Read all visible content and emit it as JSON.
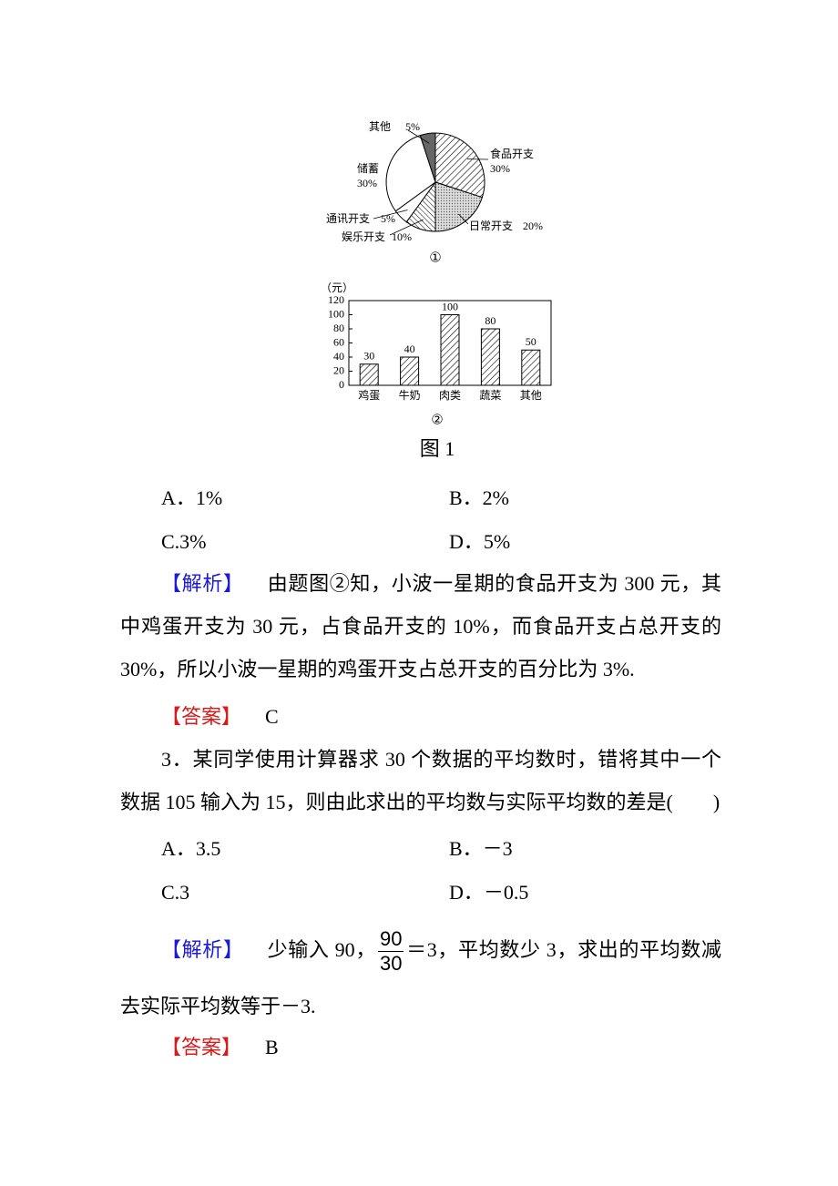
{
  "chart_data": [
    {
      "type": "pie",
      "categories": [
        "食品开支",
        "日常开支",
        "娱乐开支",
        "通讯开支",
        "储蓄",
        "其他"
      ],
      "values": [
        30,
        20,
        10,
        5,
        30,
        5
      ],
      "value_labels": [
        "30%",
        "20%",
        "10%",
        "5%",
        "30%",
        "5%"
      ],
      "label": "①"
    },
    {
      "type": "bar",
      "categories": [
        "鸡蛋",
        "牛奶",
        "肉类",
        "蔬菜",
        "其他"
      ],
      "values": [
        30,
        40,
        100,
        80,
        50
      ],
      "ylim": [
        0,
        120
      ],
      "yticks": [
        0,
        20,
        40,
        60,
        80,
        100,
        120
      ],
      "y_unit": "（元）",
      "label": "②"
    }
  ],
  "caption": "图 1",
  "question2_options": [
    "A．1%",
    "B．2%",
    "C.3%",
    "D．5%"
  ],
  "analysis1": {
    "tag": "【解析】",
    "text": "由题图②知，小波一星期的食品开支为 300 元，其中鸡蛋开支为 30 元，占食品开支的 10%，而食品开支占总开支的 30%，所以小波一星期的鸡蛋开支占总开支的百分比为 3%."
  },
  "answer1": {
    "tag": "【答案】",
    "text": "C"
  },
  "question3": {
    "stem": "3．某同学使用计算器求 30 个数据的平均数时，错将其中一个数据 105 输入为 15，则由此求出的平均数与实际平均数的差是(　　)",
    "options": [
      "A．3.5",
      "B．－3",
      "C.3",
      "D．－0.5"
    ]
  },
  "analysis2": {
    "tag": "【解析】",
    "text_before": "少输入 90，",
    "fraction": {
      "numerator": "90",
      "denominator": "30"
    },
    "text_after": "＝3，平均数少 3，求出的平均数减去实际平均数等于－3."
  },
  "answer2": {
    "tag": "【答案】",
    "text": "B"
  }
}
